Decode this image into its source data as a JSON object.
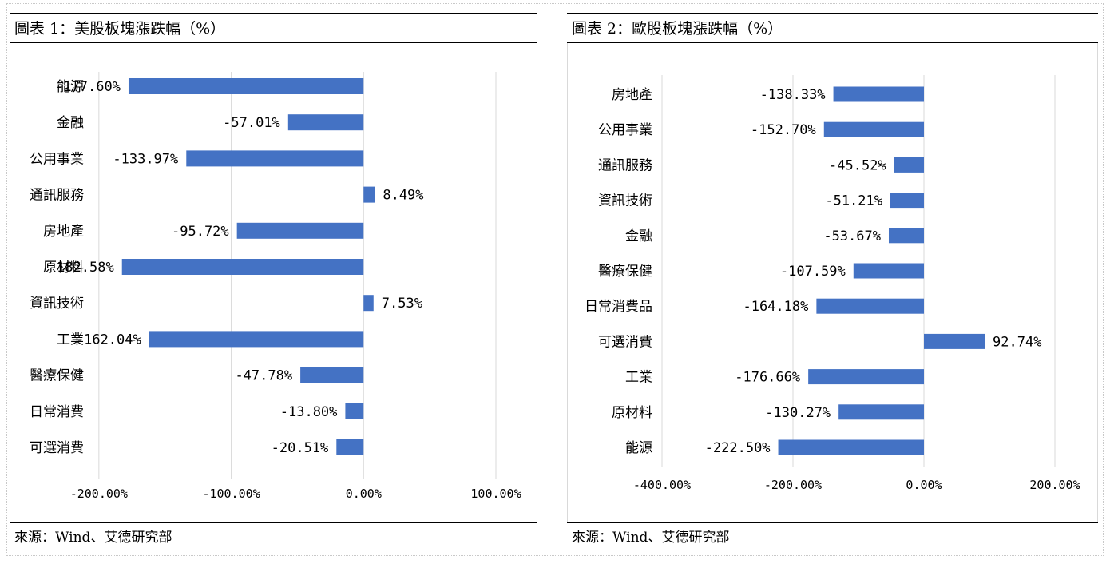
{
  "panels": [
    {
      "title": "圖表 1：美股板塊漲跌幅（%）",
      "source": "來源：Wind、艾德研究部"
    },
    {
      "title": "圖表 2：歐股板塊漲跌幅（%）",
      "source": "來源：Wind、艾德研究部"
    }
  ],
  "colors": {
    "bar": "#4472C4",
    "grid": "#d9d9d9",
    "text": "#000000"
  },
  "chart_data": [
    {
      "type": "bar",
      "orientation": "horizontal",
      "title": "圖表 1：美股板塊漲跌幅（%）",
      "categories": [
        "能源",
        "金融",
        "公用事業",
        "通訊服務",
        "房地產",
        "原材料",
        "資訊技術",
        "工業",
        "醫療保健",
        "日常消費",
        "可選消費"
      ],
      "values": [
        -177.6,
        -57.01,
        -133.97,
        8.49,
        -95.72,
        -182.58,
        7.53,
        -162.04,
        -47.78,
        -13.8,
        -20.51
      ],
      "data_labels": [
        "-177.60%",
        "-57.01%",
        "-133.97%",
        "8.49%",
        "-95.72%",
        "-182.58%",
        "7.53%",
        "-162.04%",
        "-47.78%",
        "-13.80%",
        "-20.51%"
      ],
      "xlim": [
        -250,
        100
      ],
      "xticks": [
        -200,
        -100,
        0,
        100
      ],
      "xtick_labels": [
        "-200.00%",
        "-100.00%",
        "0.00%",
        "100.00%"
      ],
      "grid": "vertical"
    },
    {
      "type": "bar",
      "orientation": "horizontal",
      "title": "圖表 2：歐股板塊漲跌幅（%）",
      "categories": [
        "房地產",
        "公用事業",
        "通訊服務",
        "資訊技術",
        "金融",
        "醫療保健",
        "日常消費品",
        "可選消費",
        "工業",
        "原材料",
        "能源"
      ],
      "values": [
        -138.33,
        -152.7,
        -45.52,
        -51.21,
        -53.67,
        -107.59,
        -164.18,
        92.74,
        -176.66,
        -130.27,
        -222.5
      ],
      "data_labels": [
        "-138.33%",
        "-152.70%",
        "-45.52%",
        "-51.21%",
        "-53.67%",
        "-107.59%",
        "-164.18%",
        "92.74%",
        "-176.66%",
        "-130.27%",
        "-222.50%"
      ],
      "xlim": [
        -400,
        200
      ],
      "xticks": [
        -400,
        -200,
        0,
        200
      ],
      "xtick_labels": [
        "-400.00%",
        "-200.00%",
        "0.00%",
        "200.00%"
      ],
      "grid": "vertical"
    }
  ]
}
